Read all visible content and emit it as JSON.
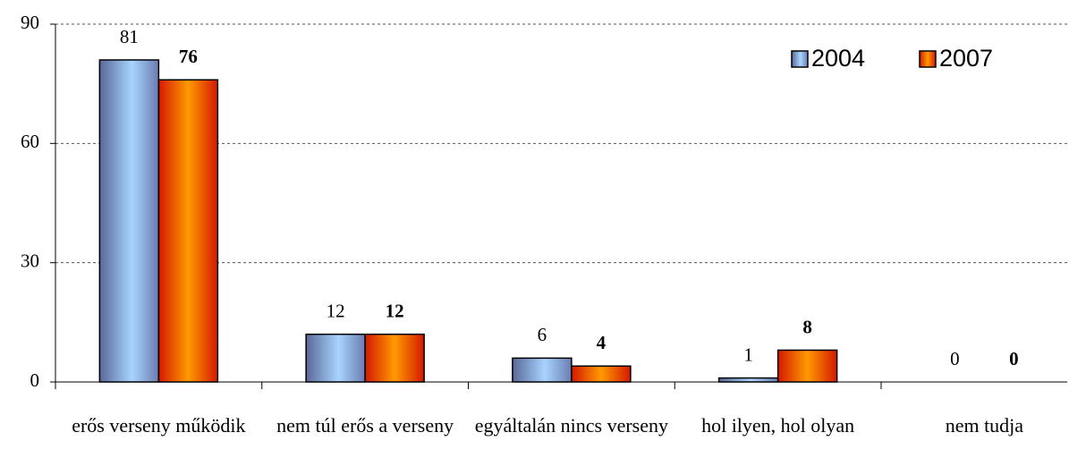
{
  "chart_data": {
    "type": "bar",
    "categories": [
      "erős verseny működik",
      "nem túl erős a verseny",
      "egyáltalán nincs verseny",
      "hol ilyen, hol olyan",
      "nem tudja"
    ],
    "series": [
      {
        "name": "2004",
        "color": "#9cc4f0",
        "values": [
          81,
          12,
          6,
          1,
          0
        ]
      },
      {
        "name": "2007",
        "color": "#ff8c00",
        "values": [
          76,
          12,
          4,
          8,
          0
        ]
      }
    ],
    "ylim": [
      0,
      90
    ],
    "yticks": [
      0,
      30,
      60,
      90
    ],
    "grid": true,
    "legend": "top right"
  }
}
